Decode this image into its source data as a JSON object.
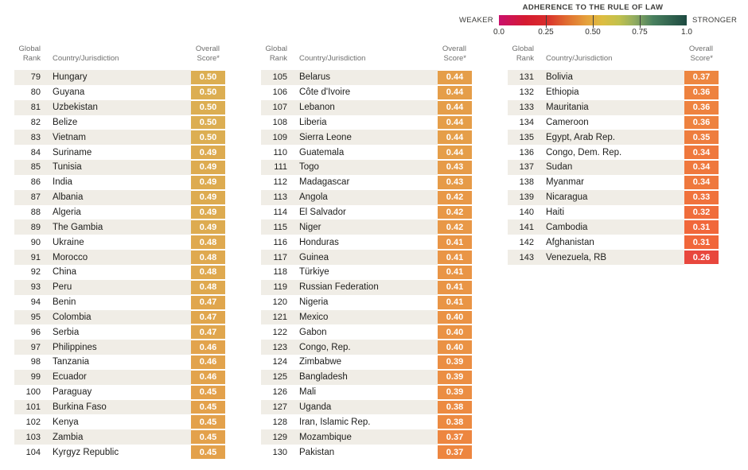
{
  "chart_data": {
    "type": "table",
    "legend": {
      "title": "ADHERENCE TO THE RULE OF LAW",
      "weaker": "WEAKER",
      "stronger": "STRONGER",
      "scale_ticks": [
        "0.0",
        "0.25",
        "0.50",
        "0.75",
        "1.0"
      ],
      "scale_range": [
        0,
        1
      ],
      "tickline_positions": [
        0.25,
        0.5,
        0.75
      ],
      "gradient_stops": [
        {
          "pos": 0,
          "color": "#c9106c"
        },
        {
          "pos": 0.14,
          "color": "#d51a31"
        },
        {
          "pos": 0.25,
          "color": "#d92c2b"
        },
        {
          "pos": 0.36,
          "color": "#e06c30"
        },
        {
          "pos": 0.47,
          "color": "#e5a23c"
        },
        {
          "pos": 0.55,
          "color": "#ddbd41"
        },
        {
          "pos": 0.64,
          "color": "#c1c14d"
        },
        {
          "pos": 0.72,
          "color": "#93ad60"
        },
        {
          "pos": 0.82,
          "color": "#49805f"
        },
        {
          "pos": 1,
          "color": "#1d4a41"
        }
      ]
    },
    "headers": {
      "rank": "Global\nRank",
      "country": "Country/Jurisdiction",
      "score": "Overall\nScore*"
    },
    "column_groups": [
      {
        "rows": [
          {
            "rank": "79",
            "country": "Hungary",
            "score": "0.50"
          },
          {
            "rank": "80",
            "country": "Guyana",
            "score": "0.50"
          },
          {
            "rank": "81",
            "country": "Uzbekistan",
            "score": "0.50"
          },
          {
            "rank": "82",
            "country": "Belize",
            "score": "0.50"
          },
          {
            "rank": "83",
            "country": "Vietnam",
            "score": "0.50"
          },
          {
            "rank": "84",
            "country": "Suriname",
            "score": "0.49"
          },
          {
            "rank": "85",
            "country": "Tunisia",
            "score": "0.49"
          },
          {
            "rank": "86",
            "country": "India",
            "score": "0.49"
          },
          {
            "rank": "87",
            "country": "Albania",
            "score": "0.49"
          },
          {
            "rank": "88",
            "country": "Algeria",
            "score": "0.49"
          },
          {
            "rank": "89",
            "country": "The Gambia",
            "score": "0.49"
          },
          {
            "rank": "90",
            "country": "Ukraine",
            "score": "0.48"
          },
          {
            "rank": "91",
            "country": "Morocco",
            "score": "0.48"
          },
          {
            "rank": "92",
            "country": "China",
            "score": "0.48"
          },
          {
            "rank": "93",
            "country": "Peru",
            "score": "0.48"
          },
          {
            "rank": "94",
            "country": "Benin",
            "score": "0.47"
          },
          {
            "rank": "95",
            "country": "Colombia",
            "score": "0.47"
          },
          {
            "rank": "96",
            "country": "Serbia",
            "score": "0.47"
          },
          {
            "rank": "97",
            "country": "Philippines",
            "score": "0.46"
          },
          {
            "rank": "98",
            "country": "Tanzania",
            "score": "0.46"
          },
          {
            "rank": "99",
            "country": "Ecuador",
            "score": "0.46"
          },
          {
            "rank": "100",
            "country": "Paraguay",
            "score": "0.45"
          },
          {
            "rank": "101",
            "country": "Burkina Faso",
            "score": "0.45"
          },
          {
            "rank": "102",
            "country": "Kenya",
            "score": "0.45"
          },
          {
            "rank": "103",
            "country": "Zambia",
            "score": "0.45"
          },
          {
            "rank": "104",
            "country": "Kyrgyz Republic",
            "score": "0.45"
          }
        ]
      },
      {
        "rows": [
          {
            "rank": "105",
            "country": "Belarus",
            "score": "0.44"
          },
          {
            "rank": "106",
            "country": "Côte d'Ivoire",
            "score": "0.44"
          },
          {
            "rank": "107",
            "country": "Lebanon",
            "score": "0.44"
          },
          {
            "rank": "108",
            "country": "Liberia",
            "score": "0.44"
          },
          {
            "rank": "109",
            "country": "Sierra Leone",
            "score": "0.44"
          },
          {
            "rank": "110",
            "country": "Guatemala",
            "score": "0.44"
          },
          {
            "rank": "111",
            "country": "Togo",
            "score": "0.43"
          },
          {
            "rank": "112",
            "country": "Madagascar",
            "score": "0.43"
          },
          {
            "rank": "113",
            "country": "Angola",
            "score": "0.42"
          },
          {
            "rank": "114",
            "country": "El Salvador",
            "score": "0.42"
          },
          {
            "rank": "115",
            "country": "Niger",
            "score": "0.42"
          },
          {
            "rank": "116",
            "country": "Honduras",
            "score": "0.41"
          },
          {
            "rank": "117",
            "country": "Guinea",
            "score": "0.41"
          },
          {
            "rank": "118",
            "country": "Türkiye",
            "score": "0.41"
          },
          {
            "rank": "119",
            "country": "Russian Federation",
            "score": "0.41"
          },
          {
            "rank": "120",
            "country": "Nigeria",
            "score": "0.41"
          },
          {
            "rank": "121",
            "country": "Mexico",
            "score": "0.40"
          },
          {
            "rank": "122",
            "country": "Gabon",
            "score": "0.40"
          },
          {
            "rank": "123",
            "country": "Congo, Rep.",
            "score": "0.40"
          },
          {
            "rank": "124",
            "country": "Zimbabwe",
            "score": "0.39"
          },
          {
            "rank": "125",
            "country": "Bangladesh",
            "score": "0.39"
          },
          {
            "rank": "126",
            "country": "Mali",
            "score": "0.39"
          },
          {
            "rank": "127",
            "country": "Uganda",
            "score": "0.38"
          },
          {
            "rank": "128",
            "country": "Iran, Islamic Rep.",
            "score": "0.38"
          },
          {
            "rank": "129",
            "country": "Mozambique",
            "score": "0.37"
          },
          {
            "rank": "130",
            "country": "Pakistan",
            "score": "0.37"
          }
        ]
      },
      {
        "rows": [
          {
            "rank": "131",
            "country": "Bolivia",
            "score": "0.37"
          },
          {
            "rank": "132",
            "country": "Ethiopia",
            "score": "0.36"
          },
          {
            "rank": "133",
            "country": "Mauritania",
            "score": "0.36"
          },
          {
            "rank": "134",
            "country": "Cameroon",
            "score": "0.36"
          },
          {
            "rank": "135",
            "country": "Egypt, Arab Rep.",
            "score": "0.35"
          },
          {
            "rank": "136",
            "country": "Congo, Dem. Rep.",
            "score": "0.34"
          },
          {
            "rank": "137",
            "country": "Sudan",
            "score": "0.34"
          },
          {
            "rank": "138",
            "country": "Myanmar",
            "score": "0.34"
          },
          {
            "rank": "139",
            "country": "Nicaragua",
            "score": "0.33"
          },
          {
            "rank": "140",
            "country": "Haiti",
            "score": "0.32"
          },
          {
            "rank": "141",
            "country": "Cambodia",
            "score": "0.31"
          },
          {
            "rank": "142",
            "country": "Afghanistan",
            "score": "0.31"
          },
          {
            "rank": "143",
            "country": "Venezuela, RB",
            "score": "0.26"
          }
        ]
      }
    ],
    "score_colors": {
      "0.50": "#dcae52",
      "0.49": "#ddab50",
      "0.48": "#dfa94f",
      "0.47": "#e0a64d",
      "0.46": "#e2a34c",
      "0.45": "#e3a14b",
      "0.44": "#e59e49",
      "0.43": "#e69b48",
      "0.42": "#e89847",
      "0.41": "#e99546",
      "0.40": "#ea9244",
      "0.39": "#eb8e43",
      "0.38": "#ec8a41",
      "0.37": "#ed8640",
      "0.36": "#ee823f",
      "0.35": "#ee7d3e",
      "0.34": "#ef783d",
      "0.33": "#f0723c",
      "0.32": "#f06d3b",
      "0.31": "#f1673a",
      "0.26": "#e8473d"
    },
    "style": {
      "stripe_color": "#f0ede6",
      "text_color": "#1d1d1b",
      "header_color": "#6f6f6e",
      "score_text_color": "#ffffff"
    }
  }
}
